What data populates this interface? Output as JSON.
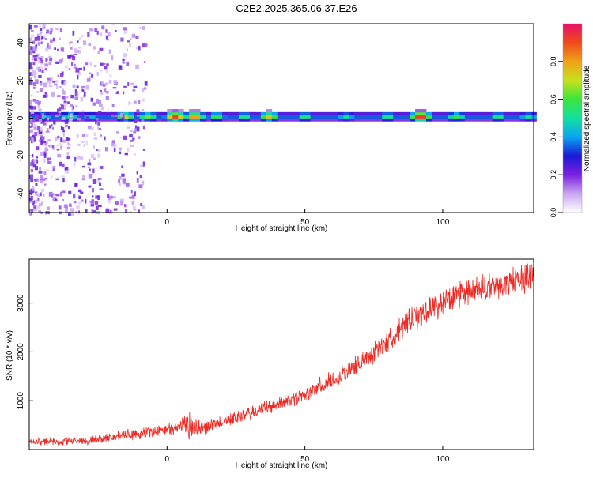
{
  "title": "C2E2.2025.365.06.37.E26",
  "colors": {
    "snr_line": "#ee2a24",
    "axis": "#000000",
    "colorbar_stops": [
      "#ffffff",
      "#c9a6f2",
      "#7b1fe0",
      "#1a1ad6",
      "#0aa6f0",
      "#12e0a0",
      "#3ce43c",
      "#c6e21c",
      "#f0a11a",
      "#f04a1a",
      "#e8106a"
    ]
  },
  "chart_data": [
    {
      "type": "heatmap",
      "xlabel": "Height of straight line (km)",
      "ylabel": "Frequency (Hz)",
      "xlim": [
        -50,
        133
      ],
      "ylim": [
        -50,
        50
      ],
      "x_ticks": [
        0,
        50,
        100
      ],
      "y_ticks": [
        -40,
        -20,
        0,
        20,
        40
      ],
      "colorbar": {
        "label": "Normalized spectral amplitude",
        "range": [
          0,
          1
        ],
        "ticks": [
          "0.0",
          "0.2",
          "0.4",
          "0.6",
          "0.8"
        ]
      },
      "band": {
        "center_freq_hz": 1,
        "hotspots": [
          {
            "x": -45,
            "amp": 0.5
          },
          {
            "x": -35,
            "amp": 0.55
          },
          {
            "x": -28,
            "amp": 0.45
          },
          {
            "x": -15,
            "amp": 0.7
          },
          {
            "x": -7,
            "amp": 0.65
          },
          {
            "x": 3,
            "amp": 0.92
          },
          {
            "x": 10,
            "amp": 0.85
          },
          {
            "x": 18,
            "amp": 0.6
          },
          {
            "x": 28,
            "amp": 0.55
          },
          {
            "x": 37,
            "amp": 0.75
          },
          {
            "x": 50,
            "amp": 0.55
          },
          {
            "x": 65,
            "amp": 0.5
          },
          {
            "x": 80,
            "amp": 0.55
          },
          {
            "x": 92,
            "amp": 0.98
          },
          {
            "x": 105,
            "amp": 0.6
          },
          {
            "x": 120,
            "amp": 0.55
          },
          {
            "x": 131,
            "amp": 0.5
          }
        ]
      }
    },
    {
      "type": "line",
      "xlabel": "Height of straight line (km)",
      "ylabel": "SNR (10 * v/v)",
      "xlim": [
        -50,
        133
      ],
      "ylim": [
        0,
        3900
      ],
      "x_ticks": [
        0,
        50,
        100
      ],
      "y_ticks": [
        1000,
        2000,
        3000
      ],
      "series": [
        {
          "x": [
            -50,
            -40,
            -30,
            -20,
            -10,
            -5,
            0,
            5,
            8,
            10,
            15,
            20,
            30,
            40,
            50,
            60,
            70,
            80,
            85,
            90,
            100,
            110,
            120,
            130,
            133
          ],
          "values": [
            170,
            160,
            180,
            250,
            330,
            370,
            400,
            470,
            520,
            430,
            470,
            560,
            740,
            930,
            1130,
            1420,
            1770,
            2220,
            2500,
            2700,
            3020,
            3220,
            3350,
            3520,
            3680
          ],
          "noise_amplitude": [
            100,
            100,
            100,
            120,
            150,
            150,
            150,
            180,
            350,
            250,
            180,
            160,
            170,
            180,
            200,
            220,
            250,
            280,
            300,
            320,
            330,
            340,
            350,
            360,
            360
          ]
        }
      ]
    }
  ]
}
